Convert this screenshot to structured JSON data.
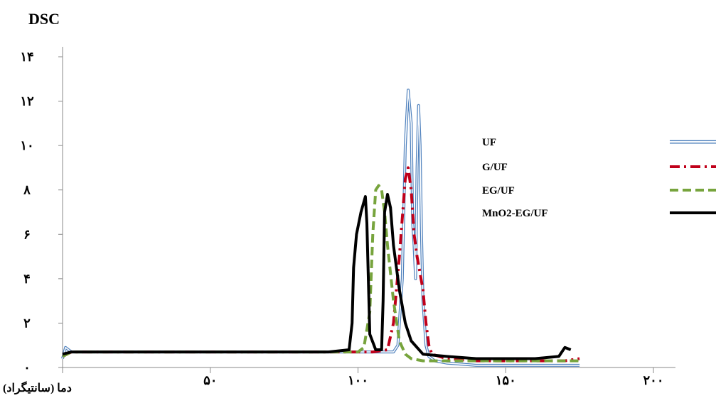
{
  "chart_data": {
    "type": "line",
    "title": "DSC",
    "xlabel": "دما (سانتیگراد)",
    "ylabel": "",
    "xlim": [
      0,
      210
    ],
    "ylim": [
      0,
      15
    ],
    "x_ticks": [
      {
        "value": 50,
        "label": "۵۰"
      },
      {
        "value": 100,
        "label": "۱۰۰"
      },
      {
        "value": 150,
        "label": "۱۵۰"
      },
      {
        "value": 200,
        "label": "۲۰۰"
      }
    ],
    "y_ticks": [
      {
        "value": 0,
        "label": "۰"
      },
      {
        "value": 2,
        "label": "۲"
      },
      {
        "value": 4,
        "label": "۴"
      },
      {
        "value": 6,
        "label": "۶"
      },
      {
        "value": 8,
        "label": "۸"
      },
      {
        "value": 10,
        "label": "۱۰"
      },
      {
        "value": 12,
        "label": "۱۲"
      },
      {
        "value": 14,
        "label": "۱۴"
      }
    ],
    "legend_position": "right",
    "series": [
      {
        "name": "UF",
        "color": "#4F81BD",
        "style": "double",
        "x": [
          0,
          1,
          3,
          20,
          60,
          95,
          112,
          113.5,
          115,
          116,
          117,
          118,
          118.5,
          119,
          119.5,
          120,
          120.5,
          121,
          121.5,
          122,
          123,
          124,
          126,
          130,
          140,
          150,
          160,
          175
        ],
        "y": [
          0.4,
          0.9,
          0.7,
          0.7,
          0.7,
          0.7,
          0.7,
          1.0,
          4.0,
          10.0,
          12.5,
          11.0,
          6.5,
          5.5,
          4.0,
          9.0,
          11.8,
          10.0,
          6.0,
          3.0,
          1.0,
          0.5,
          0.3,
          0.2,
          0.1,
          0.1,
          0.1,
          0.1
        ]
      },
      {
        "name": "G/UF",
        "color": "#C0001A",
        "style": "dashdot",
        "x": [
          0,
          3,
          20,
          60,
          90,
          105,
          110,
          112,
          114,
          116,
          117,
          118,
          119,
          120,
          122,
          123,
          124,
          125,
          130,
          140,
          150,
          160,
          170,
          175
        ],
        "y": [
          0.5,
          0.7,
          0.7,
          0.7,
          0.7,
          0.7,
          0.8,
          2.0,
          5.0,
          8.5,
          9.0,
          8.0,
          6.0,
          5.0,
          3.5,
          2.0,
          1.0,
          0.6,
          0.4,
          0.3,
          0.3,
          0.3,
          0.3,
          0.4
        ]
      },
      {
        "name": "EG/UF",
        "color": "#77A43D",
        "style": "dashed",
        "x": [
          0,
          3,
          20,
          60,
          90,
          100,
          102,
          104,
          105,
          106,
          107,
          108,
          109,
          110,
          112,
          114,
          116,
          118,
          122,
          130,
          140,
          150,
          160,
          170,
          175
        ],
        "y": [
          0.5,
          0.7,
          0.7,
          0.7,
          0.7,
          0.7,
          0.9,
          2.5,
          6.0,
          8.0,
          8.2,
          8.0,
          7.0,
          5.5,
          3.0,
          1.2,
          0.6,
          0.4,
          0.3,
          0.3,
          0.3,
          0.3,
          0.3,
          0.3,
          0.3
        ]
      },
      {
        "name": "MnO2-EG/UF",
        "color": "#000000",
        "style": "solid",
        "x": [
          0,
          3,
          20,
          60,
          90,
          97,
          98,
          98.5,
          99.5,
          101,
          102.5,
          103,
          104,
          106,
          108,
          108.5,
          109,
          110,
          111,
          112,
          114,
          116,
          118,
          122,
          130,
          140,
          150,
          160,
          168,
          170,
          172
        ],
        "y": [
          0.6,
          0.7,
          0.7,
          0.7,
          0.7,
          0.8,
          2.0,
          4.5,
          6.0,
          7.0,
          7.7,
          6.5,
          1.5,
          0.8,
          0.8,
          3.0,
          7.0,
          7.8,
          7.2,
          5.5,
          3.5,
          2.0,
          1.2,
          0.6,
          0.5,
          0.4,
          0.4,
          0.4,
          0.5,
          0.9,
          0.8
        ]
      }
    ]
  }
}
